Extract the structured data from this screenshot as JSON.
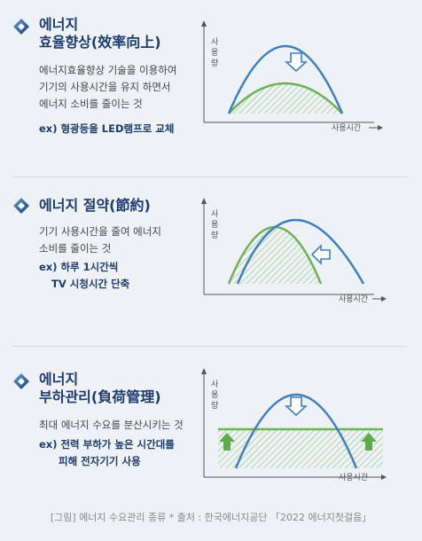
{
  "panels": [
    {
      "title_line1": "에너지",
      "title_line2": "효율향상(效率向上)",
      "desc": [
        "에너지효율향상 기술을 이용하여",
        "기기의 사용시간을 유지 하면서",
        "에너지 소비를 줄이는 것"
      ],
      "example": [
        "ex) 형광등을 LED램프로 교체"
      ]
    },
    {
      "title_line1": "에너지 절약(節約)",
      "desc": [
        "기기 사용시간을 줄여 에너지",
        "소비를 줄이는 것"
      ],
      "example": [
        "ex) 하루 1시간씩",
        "TV 시청시간 단축"
      ]
    },
    {
      "title_line1": "에너지",
      "title_line2": "부하관리(負荷管理)",
      "desc": [
        "최대 에너지 수요를 분산시키는 것"
      ],
      "example": [
        "ex) 전력 부하가 높은 시간대를",
        "피해 전자기기 사용"
      ]
    }
  ],
  "axis": {
    "y_label": [
      "사",
      "용",
      "량"
    ],
    "x_label": "사용시간"
  },
  "caption": "[그림] 에너지 수요관리 종류 * 출처 : 한국에너지공단 「2022 에너지첫걸음」",
  "colors": {
    "blue": "#3d7fc1",
    "green": "#6db356",
    "navy": "#1d3c6e"
  }
}
